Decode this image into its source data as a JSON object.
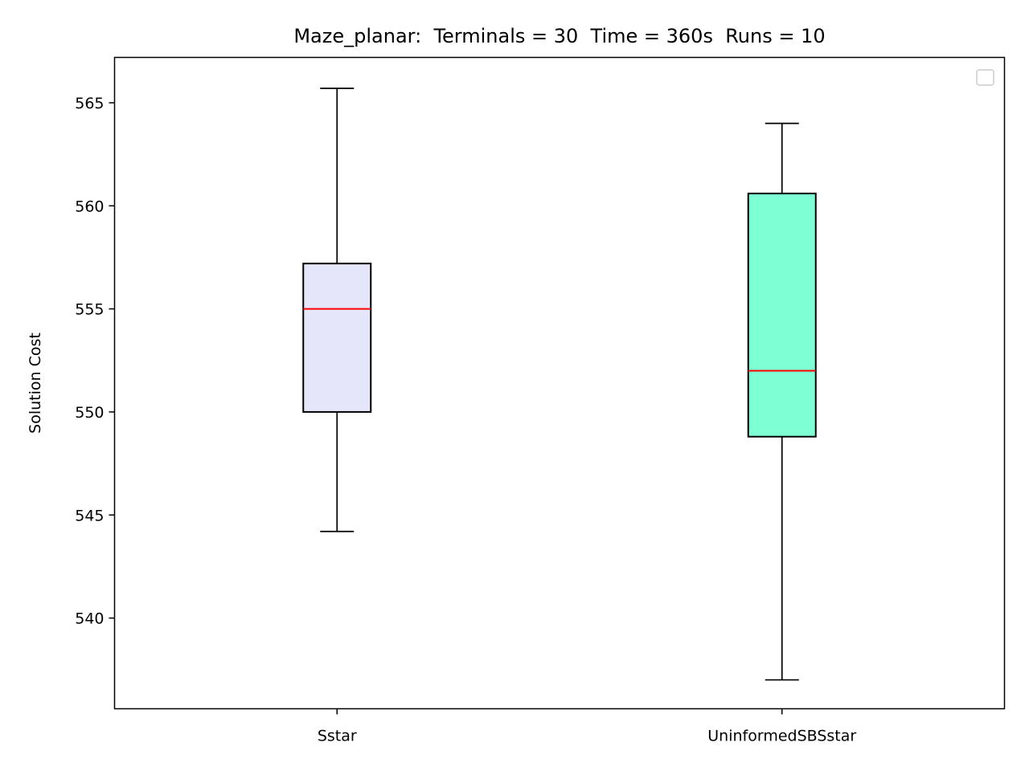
{
  "chart_data": {
    "type": "box",
    "title": "Maze_planar:  Terminals = 30  Time = 360s  Runs = 10",
    "xlabel": "",
    "ylabel": "Solution Cost",
    "ylim": [
      535.6,
      567.2
    ],
    "yticks": [
      540,
      545,
      550,
      555,
      560,
      565
    ],
    "ytick_labels": [
      "540",
      "545",
      "550",
      "555",
      "560",
      "565"
    ],
    "categories": [
      "Sstar",
      "UninformedSBSstar"
    ],
    "boxes": [
      {
        "category": "Sstar",
        "whisker_low": 544.2,
        "q1": 550.0,
        "median": 555.0,
        "q3": 557.2,
        "whisker_high": 565.7,
        "fill": "#e6e6fa"
      },
      {
        "category": "UninformedSBSstar",
        "whisker_low": 537.0,
        "q1": 548.8,
        "median": 552.0,
        "q3": 560.6,
        "whisker_high": 564.0,
        "fill": "#7fffd4"
      }
    ],
    "median_color": "#ff0000",
    "grid": false,
    "legend": {
      "placement": "top-right",
      "entries": []
    }
  }
}
